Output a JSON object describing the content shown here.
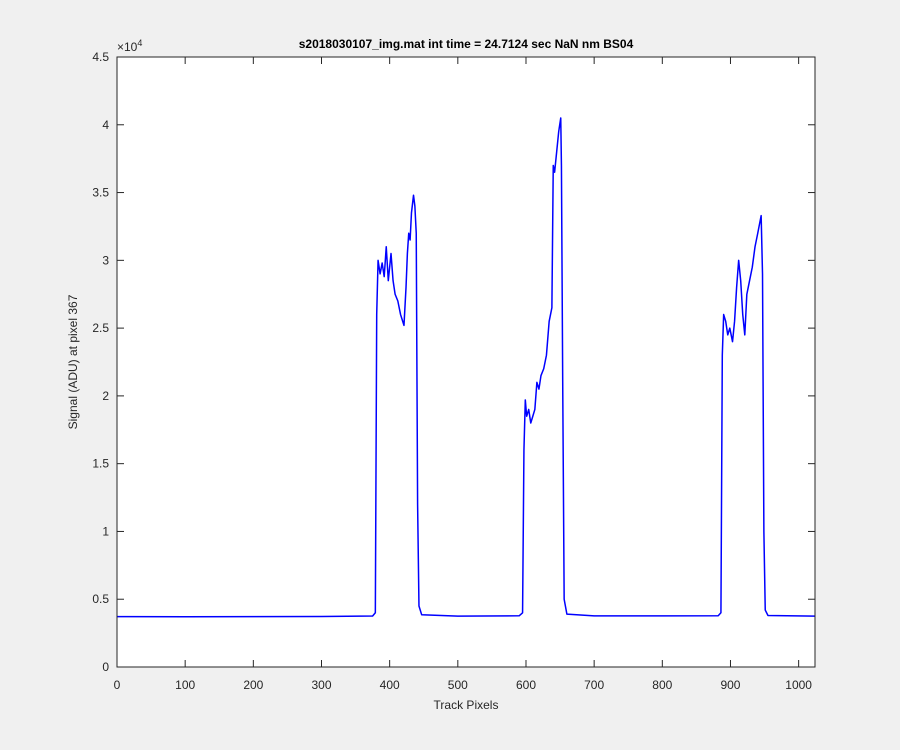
{
  "chart_data": {
    "type": "line",
    "title": "s2018030107_img.mat int time = 24.7124 sec  NaN nm BS04",
    "xlabel": "Track Pixels",
    "ylabel": "Signal (ADU) at pixel 367",
    "y_multiplier": {
      "base": "×10",
      "power": "4"
    },
    "xlim": [
      0,
      1024
    ],
    "xticks": [
      0,
      100,
      200,
      300,
      400,
      500,
      600,
      700,
      800,
      900,
      1000
    ],
    "ylim": [
      0,
      4.5
    ],
    "yticks": [
      0,
      0.5,
      1,
      1.5,
      2,
      2.5,
      3,
      3.5,
      4,
      4.5
    ],
    "x": [
      0,
      100,
      200,
      300,
      375,
      379,
      381,
      383,
      386,
      389,
      392,
      395,
      398,
      402,
      405,
      408,
      412,
      416,
      421,
      424,
      426,
      428,
      430,
      432,
      435,
      437,
      439,
      441,
      443,
      447,
      500,
      590,
      595,
      597,
      599,
      601,
      604,
      607,
      610,
      613,
      616,
      619,
      622,
      626,
      630,
      634,
      638,
      640,
      642,
      645,
      648,
      651,
      652,
      654,
      656,
      660,
      700,
      800,
      882,
      886,
      888,
      890,
      893,
      896,
      899,
      903,
      906,
      909,
      912,
      915,
      918,
      921,
      924,
      928,
      932,
      936,
      940,
      945,
      947,
      949,
      951,
      955,
      1024
    ],
    "series": [
      {
        "color": "#0000ff",
        "values": [
          0.372,
          0.371,
          0.372,
          0.373,
          0.376,
          0.4,
          2.6,
          3.0,
          2.9,
          2.98,
          2.88,
          3.1,
          2.85,
          3.05,
          2.85,
          2.75,
          2.7,
          2.6,
          2.52,
          2.8,
          3.05,
          3.2,
          3.15,
          3.35,
          3.48,
          3.4,
          3.2,
          1.2,
          0.45,
          0.385,
          0.375,
          0.378,
          0.4,
          1.6,
          1.97,
          1.85,
          1.9,
          1.8,
          1.85,
          1.9,
          2.1,
          2.05,
          2.15,
          2.2,
          2.3,
          2.55,
          2.65,
          3.7,
          3.65,
          3.8,
          3.95,
          4.05,
          3.7,
          2.0,
          0.5,
          0.39,
          0.377,
          0.377,
          0.378,
          0.4,
          2.3,
          2.6,
          2.55,
          2.45,
          2.5,
          2.4,
          2.55,
          2.8,
          3.0,
          2.85,
          2.6,
          2.45,
          2.75,
          2.85,
          2.95,
          3.1,
          3.2,
          3.33,
          2.9,
          1.0,
          0.42,
          0.38,
          0.375
        ]
      }
    ]
  }
}
